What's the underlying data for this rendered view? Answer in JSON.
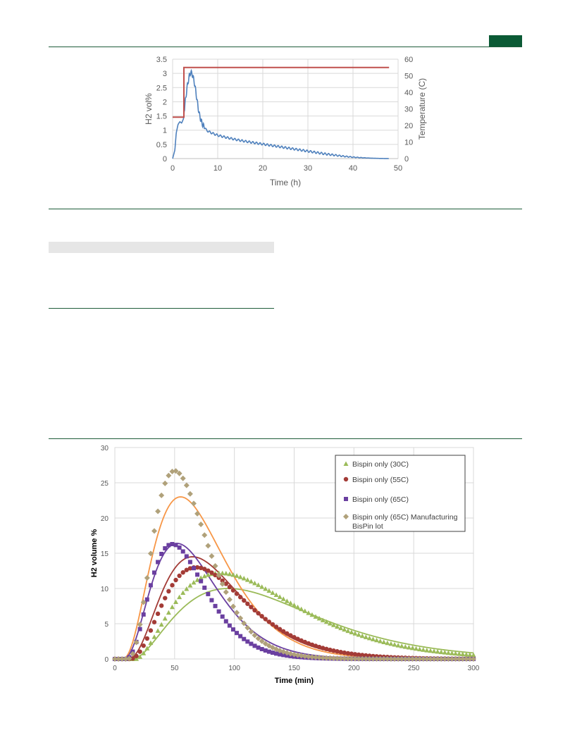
{
  "colors": {
    "rule": "#1e5c3a",
    "badge": "#0b5a35",
    "h2_line": "#4f81bd",
    "temperature_line": "#c0504d",
    "series_30C": "#9bbb59",
    "series_55C": "#a33b36",
    "series_65C": "#6a3fa0",
    "series_65C_mfg": "#b0a17a",
    "fit_orange": "#f79646"
  },
  "chart_data": [
    {
      "type": "line",
      "xlabel": "Time (h)",
      "ylabel": "H2 vol%",
      "y2label": "Temperature (C)",
      "xlim": [
        0,
        50
      ],
      "ylim": [
        0,
        3.5
      ],
      "y2lim": [
        0,
        60
      ],
      "x_ticks": [
        "0",
        "10",
        "20",
        "30",
        "40",
        "50"
      ],
      "y_ticks": [
        "0",
        "0.5",
        "1",
        "1.5",
        "2",
        "2.5",
        "3",
        "3.5"
      ],
      "y2_ticks": [
        "0",
        "10",
        "20",
        "30",
        "40",
        "50",
        "60"
      ],
      "grid": true,
      "series": [
        {
          "axis": "left",
          "x": [
            0,
            0.5,
            0.8,
            1.2,
            1.6,
            2.0,
            2.4,
            2.8,
            3.2,
            3.6,
            4.0,
            4.4,
            4.8,
            5.2,
            5.6,
            6.0,
            6.5,
            7.0,
            7.5,
            8,
            9,
            10,
            12,
            14,
            16,
            18,
            20,
            22,
            24,
            26,
            28,
            30,
            32,
            34,
            36,
            38,
            40,
            42,
            44,
            46,
            48
          ],
          "y": [
            0,
            0.3,
            0.9,
            1.2,
            1.3,
            1.25,
            1.4,
            2.0,
            2.5,
            2.85,
            3.05,
            2.95,
            2.7,
            2.3,
            1.85,
            1.5,
            1.25,
            1.1,
            1.0,
            0.95,
            0.88,
            0.82,
            0.74,
            0.67,
            0.61,
            0.56,
            0.51,
            0.46,
            0.41,
            0.36,
            0.31,
            0.26,
            0.21,
            0.16,
            0.12,
            0.08,
            0.05,
            0.03,
            0.015,
            0.005,
            0.0
          ]
        },
        {
          "axis": "right",
          "x": [
            0,
            2.5,
            2.5,
            48
          ],
          "y": [
            25,
            25,
            55,
            55
          ]
        }
      ]
    },
    {
      "type": "scatter",
      "xlabel": "Time (min)",
      "ylabel": "H2 volume %",
      "xlim": [
        0,
        300
      ],
      "ylim": [
        0,
        30
      ],
      "x_ticks": [
        "0",
        "50",
        "100",
        "150",
        "200",
        "250",
        "300"
      ],
      "y_ticks": [
        "0",
        "5",
        "10",
        "15",
        "20",
        "25",
        "30"
      ],
      "grid": true,
      "legend_position": "top-right",
      "series": [
        {
          "name": "Bispin only (30C)",
          "marker": "triangle",
          "peak": 12.2,
          "tpk": 88,
          "t0": 17,
          "shape": 0.5
        },
        {
          "name": "Bispin only (55C)",
          "marker": "circle",
          "peak": 13.0,
          "tpk": 68,
          "t0": 12,
          "shape": 0.8
        },
        {
          "name": "Bispin only (65C)",
          "marker": "square",
          "peak": 16.3,
          "tpk": 48,
          "t0": 8,
          "shape": 1.0
        },
        {
          "name": "Bispin only (65C) Manufacturing BisPin lot",
          "marker": "diamond",
          "peak": 26.7,
          "tpk": 50,
          "t0": 10,
          "shape": 1.0
        }
      ],
      "fits": [
        {
          "color": "series_30C",
          "peak": 10.0,
          "tpk": 95,
          "t0": 15,
          "shape": 0.5
        },
        {
          "color": "series_55C",
          "peak": 14.5,
          "tpk": 65,
          "t0": 10,
          "shape": 0.85
        },
        {
          "color": "series_65C",
          "peak": 16.4,
          "tpk": 52,
          "t0": 6,
          "shape": 0.9
        },
        {
          "color": "fit_orange",
          "peak": 23.0,
          "tpk": 55,
          "t0": 6,
          "shape": 0.8
        }
      ]
    }
  ]
}
